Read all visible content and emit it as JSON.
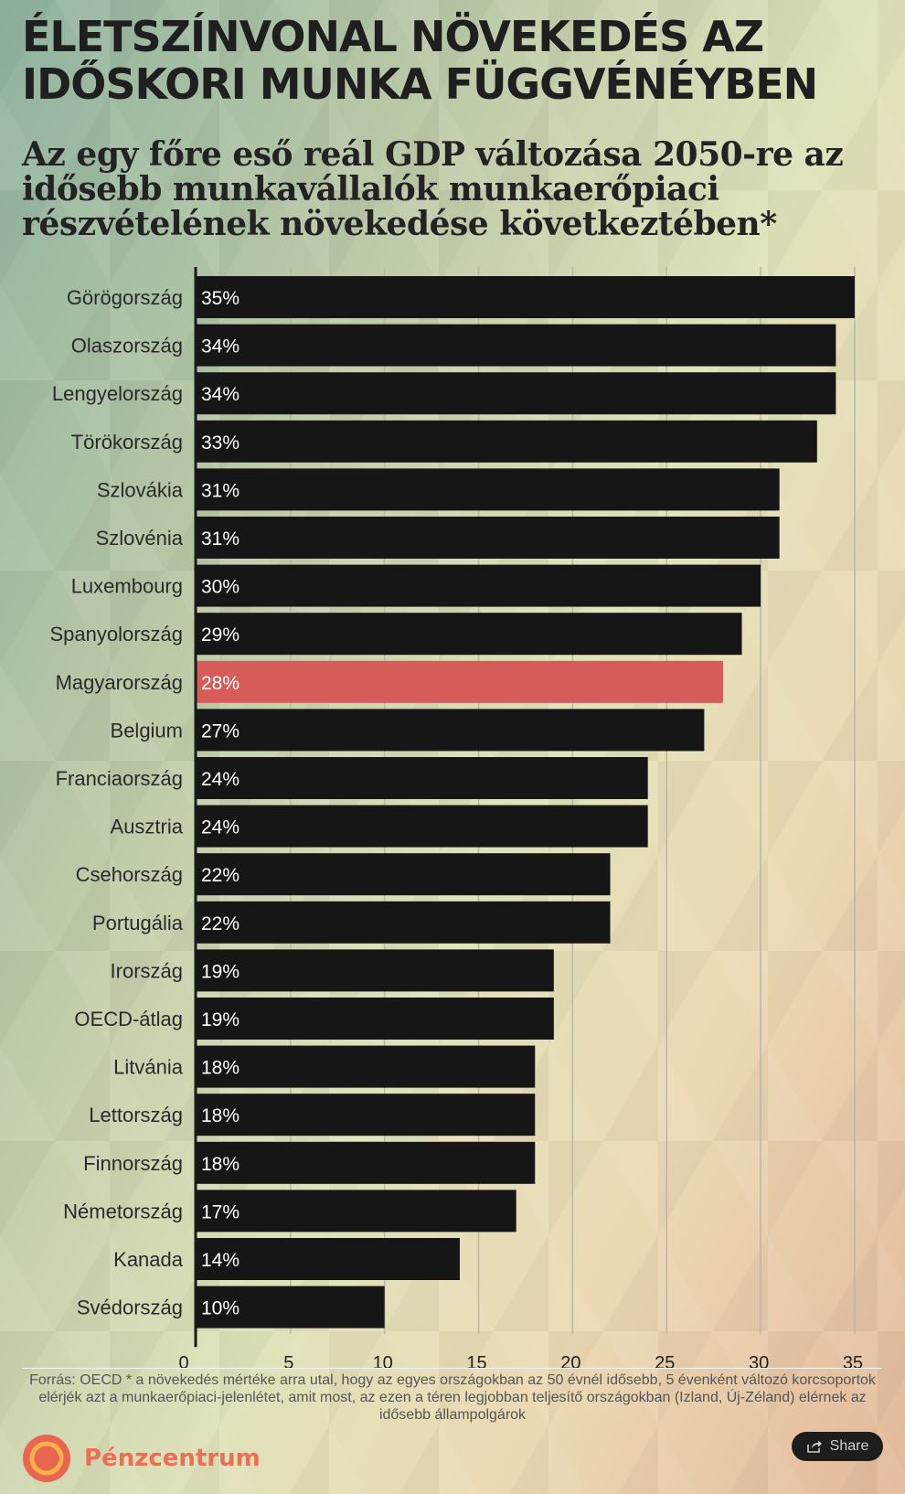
{
  "title": "ÉLETSZÍNVONAL NÖVEKEDÉS AZ IDŐSKORI MUNKA FÜGGVÉNÉYBEN",
  "subtitle": "Az egy főre eső reál GDP változása 2050-re az idősebb munkavállalók munkaerőpiaci részvételének növekedése következtében*",
  "source": "Forrás: OECD * a növekedés mértéke arra utal, hogy az egyes országokban az 50 évnél idősebb, 5 évenként változó korcsoportok elérjék azt a munkaerőpiaci-jelenlétet, amit most, az ezen a téren legjobban teljesítő országokban (Izland, Új-Zéland) elérnek az idősebb állampolgárok",
  "brand": {
    "name": "Pénzcentrum",
    "logo_icon": "penzcentrum-logo-icon"
  },
  "share": {
    "label": "Share",
    "icon": "share-icon"
  },
  "colors": {
    "bar": "#161616",
    "highlight": "#d65c5a",
    "grid": "#b8b8a4",
    "axis": "#1a1a1a"
  },
  "chart_data": {
    "type": "bar",
    "orientation": "horizontal",
    "title": "Az egy főre eső reál GDP változása 2050-re az idősebb munkavállalók munkaerőpiaci részvételének növekedése következtében*",
    "categories": [
      "Görögország",
      "Olaszország",
      "Lengyelország",
      "Törökország",
      "Szlovákia",
      "Szlovénia",
      "Luxembourg",
      "Spanyolország",
      "Magyarország",
      "Belgium",
      "Franciaország",
      "Ausztria",
      "Csehország",
      "Portugália",
      "Irország",
      "OECD-átlag",
      "Litvánia",
      "Lettország",
      "Finnország",
      "Németország",
      "Kanada",
      "Svédország"
    ],
    "values": [
      35,
      34,
      34,
      33,
      31,
      31,
      30,
      29,
      28,
      27,
      24,
      24,
      22,
      22,
      19,
      19,
      18,
      18,
      18,
      17,
      14,
      10
    ],
    "value_labels": [
      "35%",
      "34%",
      "34%",
      "33%",
      "31%",
      "31%",
      "30%",
      "29%",
      "28%",
      "27%",
      "24%",
      "24%",
      "22%",
      "22%",
      "19%",
      "19%",
      "18%",
      "18%",
      "18%",
      "17%",
      "14%",
      "10%"
    ],
    "highlight": "Magyarország",
    "xticks": [
      "0",
      "5",
      "10",
      "15",
      "20",
      "25",
      "30",
      "35"
    ],
    "xlim": [
      0,
      36
    ],
    "xlabel": "",
    "ylabel": "",
    "grid": true
  }
}
